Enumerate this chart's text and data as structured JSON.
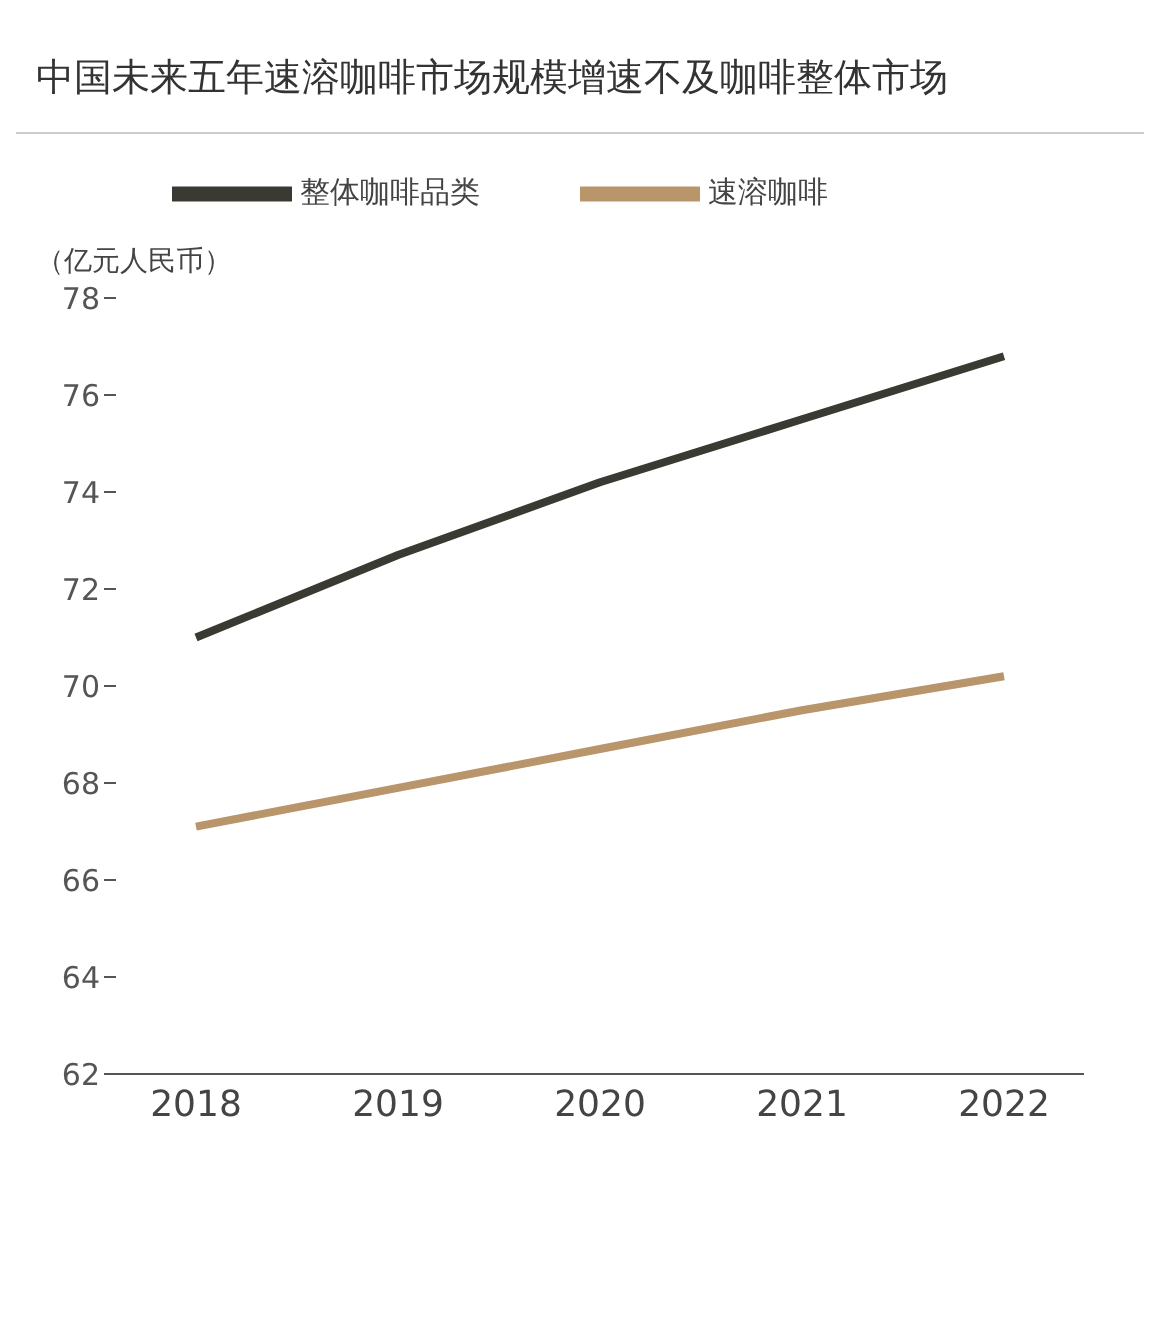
{
  "chart_data": {
    "type": "line",
    "title": "中国未来五年速溶咖啡市场规模增速不及咖啡整体市场",
    "ylabel": "（亿元人民币）",
    "categories": [
      "2018",
      "2019",
      "2020",
      "2021",
      "2022"
    ],
    "series": [
      {
        "name": "整体咖啡品类",
        "color": "#3a3a32",
        "values": [
          71.0,
          72.7,
          74.2,
          75.5,
          76.8
        ]
      },
      {
        "name": "速溶咖啡",
        "color": "#b8956a",
        "values": [
          67.1,
          67.9,
          68.7,
          69.5,
          70.2
        ]
      }
    ],
    "ylim": [
      62,
      78
    ],
    "yticks": [
      62,
      64,
      66,
      68,
      70,
      72,
      74,
      76,
      78
    ],
    "legend": "top",
    "marker": "none"
  }
}
